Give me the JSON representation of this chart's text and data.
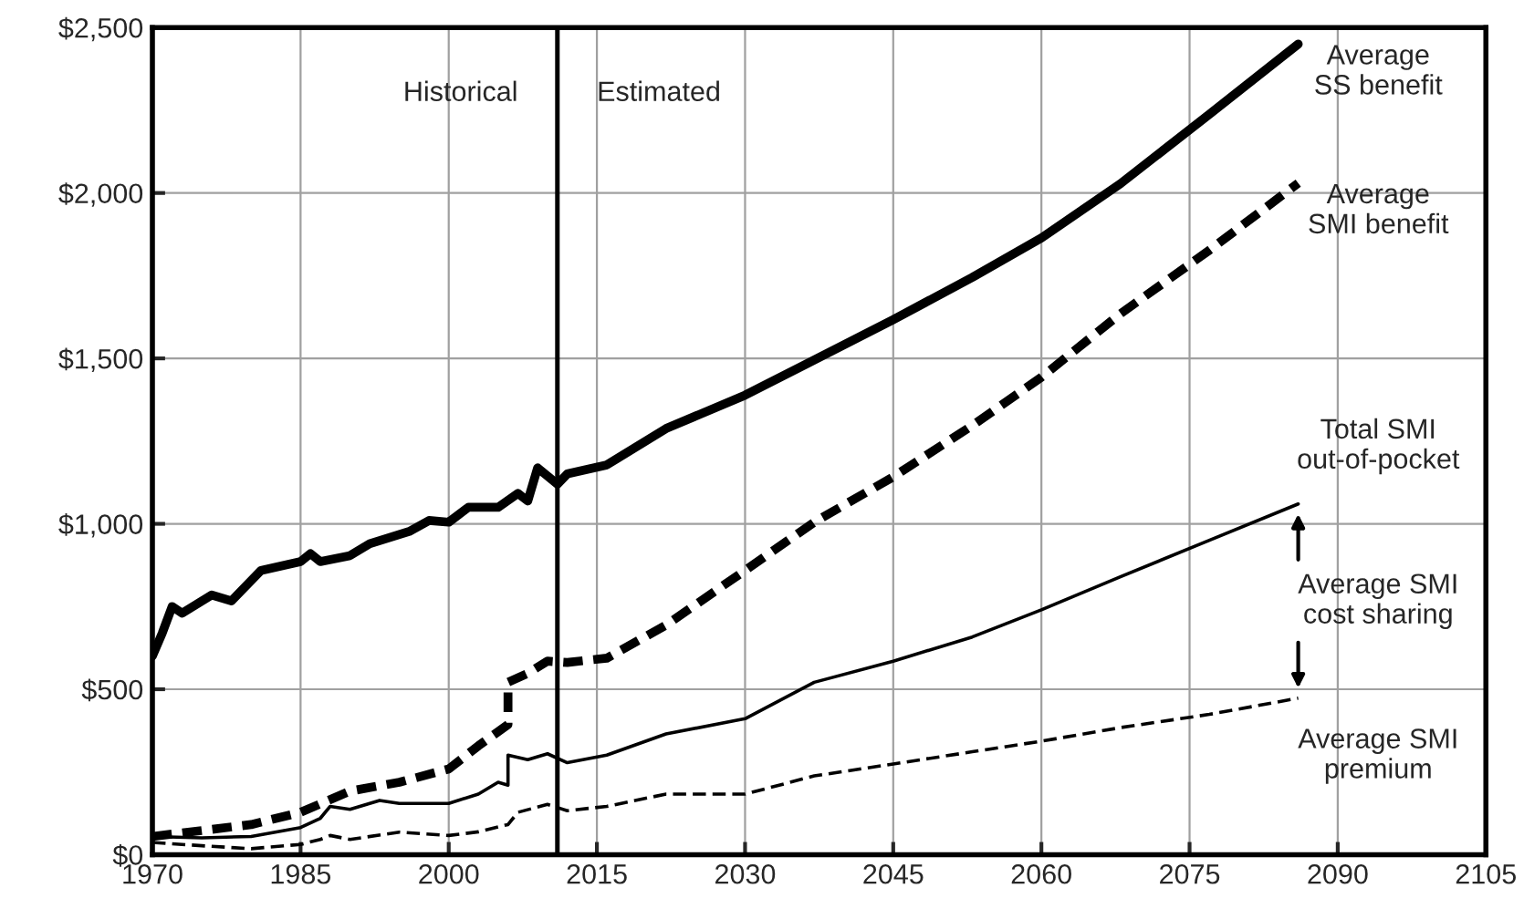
{
  "chart_data": {
    "type": "line",
    "xlim": [
      1970,
      2105
    ],
    "xticks": [
      1970,
      1985,
      2000,
      2015,
      2030,
      2045,
      2060,
      2075,
      2090,
      2105
    ],
    "ylim": [
      0,
      2500
    ],
    "yticks": [
      {
        "value": 0,
        "label": "$0"
      },
      {
        "value": 500,
        "label": "$500"
      },
      {
        "value": 1000,
        "label": "$1,000"
      },
      {
        "value": 1500,
        "label": "$1,500"
      },
      {
        "value": 2000,
        "label": "$2,000"
      },
      {
        "value": 2500,
        "label": "$2,500"
      }
    ],
    "grid": true,
    "legend": false,
    "ref_lines": [
      {
        "axis": "x",
        "value": 2011,
        "color": "#000000",
        "line_style": "solid"
      }
    ],
    "annotations": [
      "Historical",
      "Estimated",
      "Average SMI\ncost sharing"
    ],
    "series": [
      {
        "name": "Average\nSS benefit",
        "color": "#000000",
        "line_style": "solid",
        "x": [
          1970,
          1971,
          1972,
          1973,
          1976,
          1978,
          1981,
          1985,
          1986,
          1987,
          1990,
          1992,
          1996,
          1998,
          2000,
          2002,
          2005,
          2007,
          2008,
          2009,
          2011,
          2012,
          2016,
          2022,
          2030,
          2036,
          2045,
          2053,
          2060,
          2068,
          2077,
          2086
        ],
        "values": [
          600,
          670,
          750,
          730,
          785,
          767,
          859,
          886,
          910,
          886,
          904,
          940,
          977,
          1010,
          1005,
          1050,
          1050,
          1092,
          1069,
          1169,
          1120,
          1151,
          1178,
          1288,
          1389,
          1480,
          1617,
          1745,
          1864,
          2028,
          2238,
          2450
        ]
      },
      {
        "name": "Average\nSMI benefit",
        "color": "#000000",
        "line_style": "dashed",
        "x": [
          1970,
          1975,
          1980,
          1985,
          1990,
          1995,
          2000,
          2003,
          2006,
          2006,
          2008,
          2010,
          2012,
          2016,
          2022,
          2030,
          2037,
          2045,
          2053,
          2060,
          2068,
          2077,
          2086
        ],
        "values": [
          55,
          73,
          91,
          128,
          192,
          219,
          259,
          329,
          393,
          521,
          548,
          585,
          581,
          594,
          694,
          859,
          1005,
          1142,
          1297,
          1443,
          1635,
          1827,
          2030
        ]
      },
      {
        "name": "Total SMI\nout-of-pocket",
        "color": "#000000",
        "line_style": "solid",
        "x": [
          1970,
          1975,
          1980,
          1985,
          1987,
          1988,
          1990,
          1993,
          1995,
          2000,
          2003,
          2005,
          2006,
          2006,
          2008,
          2010,
          2012,
          2016,
          2022,
          2030,
          2037,
          2045,
          2053,
          2060,
          2068,
          2077,
          2086
        ],
        "values": [
          55,
          51,
          55,
          82,
          110,
          146,
          137,
          164,
          155,
          155,
          183,
          219,
          210,
          301,
          287,
          305,
          278,
          301,
          365,
          411,
          521,
          585,
          658,
          740,
          840,
          950,
          1060
        ]
      },
      {
        "name": "Average SMI\npremium",
        "color": "#000000",
        "line_style": "dashed",
        "x": [
          1970,
          1975,
          1980,
          1985,
          1987,
          1988,
          1990,
          1995,
          2000,
          2003,
          2006,
          2007,
          2010,
          2012,
          2016,
          2022,
          2030,
          2037,
          2045,
          2053,
          2060,
          2068,
          2077,
          2086
        ],
        "values": [
          37,
          27,
          18,
          31,
          46,
          58,
          46,
          68,
          58,
          69,
          91,
          128,
          152,
          133,
          146,
          183,
          183,
          238,
          274,
          311,
          343,
          384,
          424,
          473
        ]
      }
    ]
  }
}
